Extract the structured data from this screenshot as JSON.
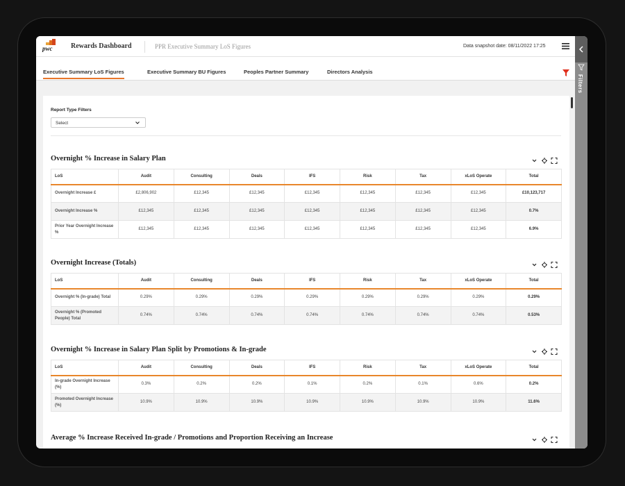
{
  "header": {
    "logo": "pwc",
    "app_title": "Rewards Dashboard",
    "page_title": "PPR Executive Summary LoS Figures",
    "snapshot": "Data snapshot date: 08/11/2022 17:25"
  },
  "sidebar": {
    "label": "Filters"
  },
  "tabs": [
    "Executive Summary LoS Figures",
    "Executive Summary BU Figures",
    "Peoples Partner Summary",
    "Directors Analysis"
  ],
  "active_tab": 0,
  "filters": {
    "label": "Report Type Filters",
    "select": "Select"
  },
  "sections": [
    {
      "title": "Overnight % Increase in Salary Plan",
      "table": {
        "columns": [
          "LoS",
          "Audit",
          "Consulting",
          "Deals",
          "IFS",
          "Risk",
          "Tax",
          "xLoS Operate",
          "Total"
        ],
        "rows": [
          [
            "Overnight Increase £",
            "£2,806,902",
            "£12,345",
            "£12,345",
            "£12,345",
            "£12,345",
            "£12,345",
            "£12,345",
            "£10,123,717"
          ],
          [
            "Overnight Increase %",
            "£12,345",
            "£12,345",
            "£12,345",
            "£12,345",
            "£12,345",
            "£12,345",
            "£12,345",
            "0.7%"
          ],
          [
            "Prior Year Overnight Increase %",
            "£12,345",
            "£12,345",
            "£12,345",
            "£12,345",
            "£12,345",
            "£12,345",
            "£12,345",
            "6.9%"
          ]
        ]
      }
    },
    {
      "title": "Overnight Increase (Totals)",
      "table": {
        "columns": [
          "LoS",
          "Audit",
          "Consulting",
          "Deals",
          "IFS",
          "Risk",
          "Tax",
          "xLoS Operate",
          "Total"
        ],
        "rows": [
          [
            "Overnight % (In-grade) Total",
            "0.29%",
            "0.29%",
            "0.29%",
            "0.29%",
            "0.29%",
            "0.29%",
            "0.29%",
            "0.29%"
          ],
          [
            "Overnight % (Promoted People) Total",
            "0.74%",
            "0.74%",
            "0.74%",
            "0.74%",
            "0.74%",
            "0.74%",
            "0.74%",
            "0.53%"
          ]
        ]
      }
    },
    {
      "title": "Overnight % Increase in Salary Plan Split by Promotions & In-grade",
      "table": {
        "columns": [
          "LoS",
          "Audit",
          "Consulting",
          "Deals",
          "IFS",
          "Risk",
          "Tax",
          "xLoS Operate",
          "Total"
        ],
        "rows": [
          [
            "In-grade Overnight Increase (%)",
            "0.3%",
            "0.2%",
            "0.2%",
            "0.1%",
            "0.2%",
            "0.1%",
            "0.6%",
            "0.2%"
          ],
          [
            "Promoted Overnight Increase (%)",
            "10.9%",
            "10.9%",
            "10.9%",
            "10.9%",
            "10.9%",
            "10.9%",
            "10.9%",
            "11.6%"
          ]
        ]
      }
    },
    {
      "title": "Average % Increase Received In-grade / Promotions and Proportion Receiving an Increase"
    }
  ]
}
